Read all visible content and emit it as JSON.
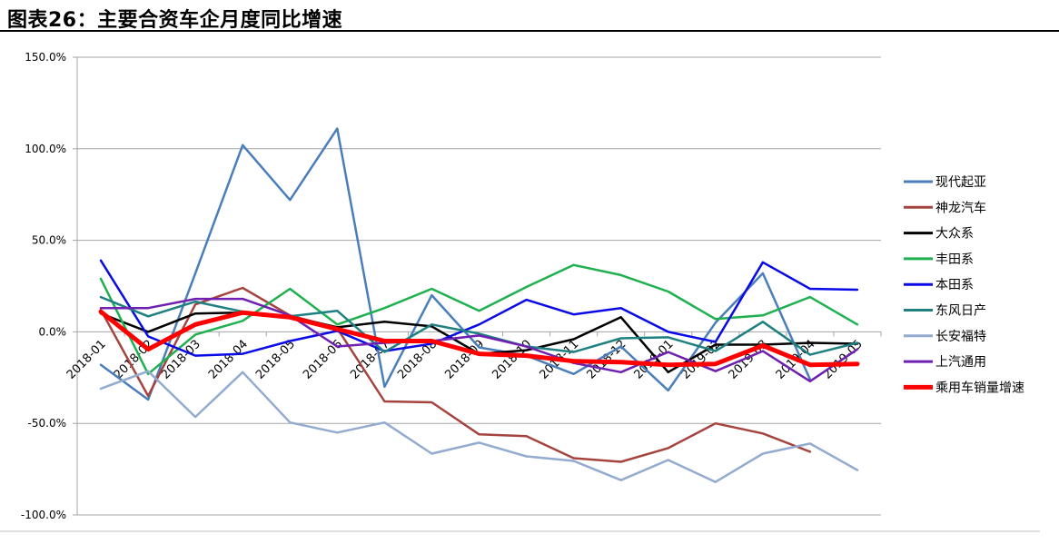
{
  "chart_data": {
    "type": "line",
    "title": "图表26：主要合资车企月度同比增速",
    "xlabel": "",
    "ylabel": "",
    "ylim": [
      -100,
      150
    ],
    "yticks": [
      150,
      100,
      50,
      0,
      -50,
      -100
    ],
    "ytick_labels": [
      "150.0%",
      "100.0%",
      "50.0%",
      "0.0%",
      "-50.0%",
      "-100.0%"
    ],
    "grid": true,
    "legend_position": "right",
    "categories": [
      "2018-01",
      "2018-02",
      "2018-03",
      "2018-04",
      "2018-05",
      "2018-06",
      "2018-07",
      "2018-08",
      "2018-09",
      "2018-10",
      "2018-11",
      "2018-12",
      "2019-01",
      "2019-02",
      "2019-03",
      "2019-04",
      "2019-05"
    ],
    "series": [
      {
        "name": "现代起亚",
        "color": "#4A7EBB",
        "width": 2.5,
        "values": [
          -18,
          -37,
          32,
          102,
          72,
          111,
          -30,
          20,
          -8.5,
          -13,
          -23,
          -8,
          -32,
          5,
          32,
          -26,
          null
        ]
      },
      {
        "name": "神龙汽车",
        "color": "#A5443F",
        "width": 2.5,
        "values": [
          12,
          -35,
          15,
          24,
          9,
          2,
          -38,
          -38.5,
          -56,
          -57,
          -69,
          -71,
          -63.5,
          -50,
          -55.5,
          -65.5,
          null
        ]
      },
      {
        "name": "大众系",
        "color": "#000000",
        "width": 2.5,
        "values": [
          10,
          0,
          10,
          10.5,
          8.5,
          2.5,
          5.5,
          3,
          -12,
          -10,
          -4,
          8,
          -22,
          -7,
          -7,
          -6,
          -6.5
        ]
      },
      {
        "name": "丰田系",
        "color": "#1FB050",
        "width": 2.5,
        "values": [
          29,
          -23,
          -1.5,
          6,
          23.5,
          4,
          13,
          23.5,
          11.5,
          24.5,
          36.5,
          31,
          22,
          7,
          9,
          19,
          4
        ]
      },
      {
        "name": "本田系",
        "color": "#0A0AE6",
        "width": 2.5,
        "values": [
          39,
          -2.5,
          -13,
          -12,
          -5,
          0.5,
          -10.5,
          -6.5,
          4,
          17.5,
          9.5,
          13,
          0,
          -5.5,
          38,
          23.5,
          23
        ]
      },
      {
        "name": "东风日产",
        "color": "#1E8080",
        "width": 2.5,
        "values": [
          19,
          8.5,
          16.5,
          11,
          8.5,
          11.5,
          -11,
          4,
          -1,
          -8,
          -11,
          -3.5,
          -3,
          -10.5,
          5.5,
          -12.5,
          -6
        ]
      },
      {
        "name": "长安福特",
        "color": "#93ABCF",
        "width": 2.5,
        "values": [
          -31,
          -21.5,
          -46.5,
          -22,
          -49.5,
          -55,
          -49.5,
          -66.5,
          -60.5,
          -68,
          -70.5,
          -81,
          -70,
          -82,
          -66.5,
          -61,
          -75.5
        ]
      },
      {
        "name": "上汽通用",
        "color": "#7020B0",
        "width": 2.5,
        "values": [
          13,
          13,
          18,
          18,
          9,
          -8,
          -6,
          -5,
          -2,
          -8,
          -17,
          -22,
          -11,
          -21.5,
          -10.5,
          -27,
          -9.5
        ]
      },
      {
        "name": "乘用车销量增速",
        "color": "#FF0000",
        "width": 5,
        "values": [
          11,
          -9.5,
          4,
          10.5,
          8,
          1.5,
          -5,
          -5,
          -12,
          -13,
          -16,
          -16.5,
          -18,
          -17.5,
          -7.5,
          -18,
          -17.5
        ]
      }
    ]
  }
}
